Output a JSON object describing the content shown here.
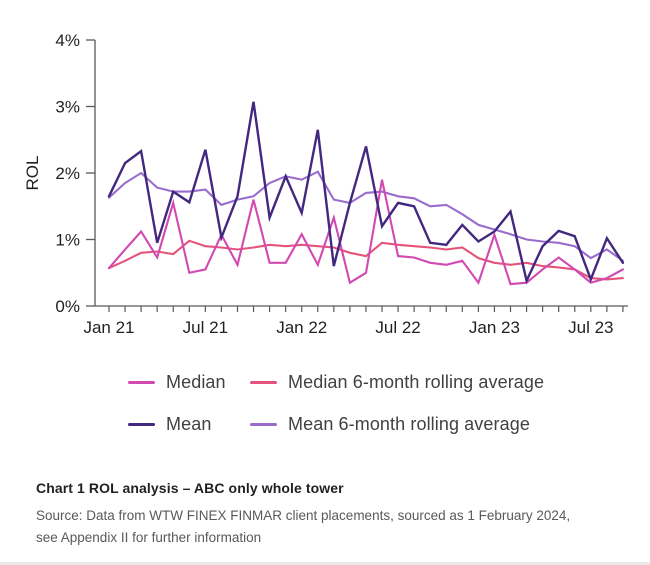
{
  "chart_data": {
    "type": "line",
    "title": "",
    "ylabel": "ROL",
    "grid": false,
    "legend_position": "bottom",
    "ylim": [
      0,
      4
    ],
    "y_ticks": [
      "0%",
      "1%",
      "2%",
      "3%",
      "4%"
    ],
    "x_tick_labels": [
      "Jan 21",
      "Jul 21",
      "Jan 22",
      "Jul 22",
      "Jan 23",
      "Jul 23"
    ],
    "x_tick_positions": [
      0,
      6,
      12,
      18,
      24,
      30
    ],
    "x": [
      "Jan 21",
      "Feb 21",
      "Mar 21",
      "Apr 21",
      "May 21",
      "Jun 21",
      "Jul 21",
      "Aug 21",
      "Sep 21",
      "Oct 21",
      "Nov 21",
      "Dec 21",
      "Jan 22",
      "Feb 22",
      "Mar 22",
      "Apr 22",
      "May 22",
      "Jun 22",
      "Jul 22",
      "Aug 22",
      "Sep 22",
      "Oct 22",
      "Nov 22",
      "Dec 22",
      "Jan 23",
      "Feb 23",
      "Mar 23",
      "Apr 23",
      "May 23",
      "Jun 23",
      "Jul 23",
      "Aug 23",
      "Sep 23"
    ],
    "series": [
      {
        "name": "Median",
        "color": "#d149b1",
        "values": [
          0.57,
          0.85,
          1.12,
          0.73,
          1.55,
          0.5,
          0.55,
          1.07,
          0.62,
          1.6,
          0.65,
          0.65,
          1.08,
          0.62,
          1.33,
          0.35,
          0.5,
          1.9,
          0.75,
          0.73,
          0.65,
          0.62,
          0.68,
          0.35,
          1.07,
          0.33,
          0.35,
          0.55,
          0.73,
          0.55,
          0.35,
          0.42,
          0.55
        ]
      },
      {
        "name": "Median 6-month rolling average",
        "color": "#e5537b",
        "values": [
          0.57,
          0.68,
          0.8,
          0.82,
          0.78,
          0.98,
          0.9,
          0.88,
          0.85,
          0.88,
          0.92,
          0.9,
          0.92,
          0.9,
          0.88,
          0.8,
          0.75,
          0.95,
          0.92,
          0.9,
          0.88,
          0.85,
          0.88,
          0.72,
          0.65,
          0.62,
          0.65,
          0.6,
          0.58,
          0.55,
          0.42,
          0.4,
          0.42
        ]
      },
      {
        "name": "Mean",
        "color": "#42287f",
        "values": [
          1.65,
          2.15,
          2.33,
          0.95,
          1.72,
          1.56,
          2.35,
          1.03,
          1.65,
          3.07,
          1.33,
          1.95,
          1.4,
          2.65,
          0.6,
          1.55,
          2.4,
          1.2,
          1.55,
          1.5,
          0.95,
          0.92,
          1.22,
          0.97,
          1.12,
          1.42,
          0.38,
          0.9,
          1.13,
          1.05,
          0.4,
          1.02,
          0.65
        ]
      },
      {
        "name": "Mean 6-month rolling average",
        "color": "#9a6ccd",
        "values": [
          1.63,
          1.85,
          2.0,
          1.78,
          1.72,
          1.72,
          1.75,
          1.52,
          1.6,
          1.65,
          1.85,
          1.95,
          1.9,
          2.02,
          1.6,
          1.55,
          1.7,
          1.72,
          1.65,
          1.62,
          1.5,
          1.52,
          1.38,
          1.22,
          1.15,
          1.08,
          1.0,
          0.97,
          0.95,
          0.9,
          0.72,
          0.85,
          0.68
        ]
      }
    ],
    "axis_color": "#58595b",
    "tick_label_color": "#231f20"
  },
  "caption": {
    "title": "Chart 1 ROL analysis – ABC only whole tower",
    "source_line1": "Source: Data from WTW FINEX FINMAR client placements, sourced as 1 February 2024,",
    "source_line2": "see Appendix II for further information"
  }
}
